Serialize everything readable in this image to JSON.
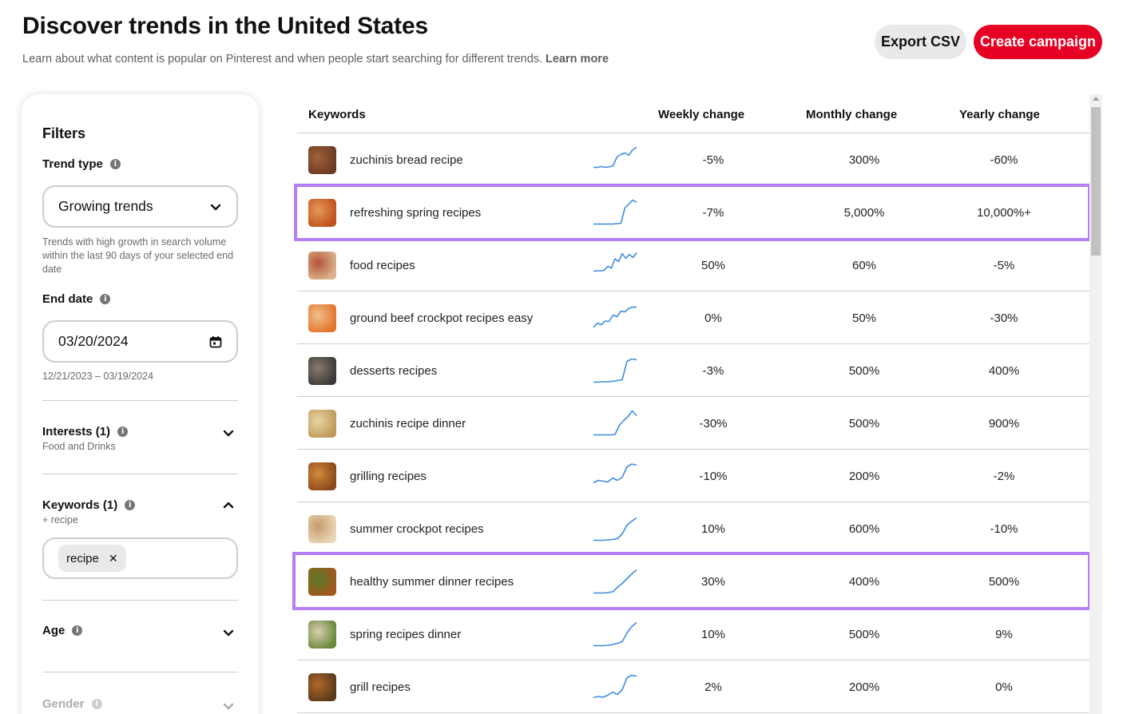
{
  "header": {
    "title": "Discover trends in the United States",
    "subtitle": "Learn about what content is popular on Pinterest and when people start searching for different trends.",
    "learn_more": "Learn more",
    "export_label": "Export CSV",
    "create_label": "Create campaign"
  },
  "filters": {
    "title": "Filters",
    "trend_type": {
      "label": "Trend type",
      "value": "Growing trends",
      "help": "Trends with high growth in search volume within the last 90 days of your selected end date"
    },
    "end_date": {
      "label": "End date",
      "value": "03/20/2024",
      "range": "12/21/2023 – 03/19/2024"
    },
    "interests": {
      "label": "Interests (1)",
      "sub": "Food and Drinks"
    },
    "keywords": {
      "label": "Keywords (1)",
      "sub": "+ recipe",
      "tag": "recipe"
    },
    "age": {
      "label": "Age"
    },
    "gender": {
      "label": "Gender"
    }
  },
  "table": {
    "columns": {
      "keywords": "Keywords",
      "weekly": "Weekly change",
      "monthly": "Monthly change",
      "yearly": "Yearly change"
    },
    "sparkline_color": "#3d8ddc",
    "highlight_color": "#b57ef5",
    "rows": [
      {
        "keyword": "zuchinis bread recipe",
        "weekly": "-5%",
        "monthly": "300%",
        "yearly": "-60%",
        "thumb": [
          "#6b3a24",
          "#a0623a"
        ],
        "trend": [
          2,
          2,
          2.2,
          2,
          2.1,
          2.4,
          4.6,
          5.2,
          5.6,
          5.0,
          6.4,
          7
        ]
      },
      {
        "keyword": "refreshing spring recipes",
        "weekly": "-7%",
        "monthly": "5,000%",
        "yearly": "10,000%+",
        "thumb": [
          "#c0521c",
          "#e69a5a"
        ],
        "trend": [
          1,
          1,
          1,
          1,
          1,
          1,
          1.1,
          1.2,
          5,
          6,
          7,
          6.4
        ]
      },
      {
        "keyword": "food recipes",
        "weekly": "50%",
        "monthly": "60%",
        "yearly": "-5%",
        "thumb": [
          "#d9b38c",
          "#b5543a"
        ],
        "trend": [
          2.4,
          2.5,
          2.5,
          2.6,
          3.6,
          3.2,
          5.5,
          4.8,
          6.8,
          5.6,
          6.6,
          5.8,
          7
        ]
      },
      {
        "keyword": "ground beef crockpot recipes easy",
        "weekly": "0%",
        "monthly": "50%",
        "yearly": "-30%",
        "thumb": [
          "#e4742c",
          "#f0c08a"
        ],
        "trend": [
          1.5,
          2.6,
          2.2,
          3.1,
          3.0,
          4.6,
          4.2,
          5.6,
          5.4,
          6.3,
          6.6,
          6.6
        ]
      },
      {
        "keyword": "desserts recipes",
        "weekly": "-3%",
        "monthly": "500%",
        "yearly": "400%",
        "thumb": [
          "#3a3a3a",
          "#8a7a6a"
        ],
        "trend": [
          1,
          1,
          1.1,
          1.1,
          1.2,
          1.4,
          1.6,
          6.2,
          6.8,
          6.6
        ]
      },
      {
        "keyword": "zuchinis recipe dinner",
        "weekly": "-30%",
        "monthly": "500%",
        "yearly": "900%",
        "thumb": [
          "#c29a5a",
          "#e7d4a5"
        ],
        "trend": [
          1,
          1,
          1,
          1,
          1,
          1.1,
          3.4,
          4.6,
          5.6,
          7,
          5.8
        ]
      },
      {
        "keyword": "grilling recipes",
        "weekly": "-10%",
        "monthly": "200%",
        "yearly": "-2%",
        "thumb": [
          "#8c4a1a",
          "#d28a3c"
        ],
        "trend": [
          2.2,
          2.8,
          2.6,
          2.4,
          3.4,
          2.8,
          3.6,
          6.2,
          6.9,
          6.6
        ]
      },
      {
        "keyword": "summer crockpot recipes",
        "weekly": "10%",
        "monthly": "600%",
        "yearly": "-10%",
        "thumb": [
          "#e8d6b8",
          "#c89a6a"
        ],
        "trend": [
          1,
          1,
          1,
          1.1,
          1.2,
          1.4,
          2.6,
          4.8,
          5.8,
          6.6
        ]
      },
      {
        "keyword": "healthy summer dinner recipes",
        "weekly": "30%",
        "monthly": "400%",
        "yearly": "500%",
        "thumb": [
          "#a2581c",
          "#5a7a2a"
        ],
        "trend": [
          1,
          1,
          1,
          1.1,
          1.3,
          2.4,
          3.4,
          4.6,
          5.8,
          6.8
        ]
      },
      {
        "keyword": "spring recipes dinner",
        "weekly": "10%",
        "monthly": "500%",
        "yearly": "9%",
        "thumb": [
          "#6a8a3a",
          "#d9cfb0"
        ],
        "trend": [
          1,
          1,
          1,
          1.1,
          1.3,
          1.6,
          2.0,
          4.2,
          5.8,
          6.8
        ]
      },
      {
        "keyword": "grill recipes",
        "weekly": "2%",
        "monthly": "200%",
        "yearly": "0%",
        "thumb": [
          "#5a3a1a",
          "#b06a2a"
        ],
        "trend": [
          1.2,
          1.5,
          1.3,
          1.8,
          2.6,
          2.0,
          3.2,
          6.2,
          6.8,
          6.6
        ]
      }
    ]
  }
}
